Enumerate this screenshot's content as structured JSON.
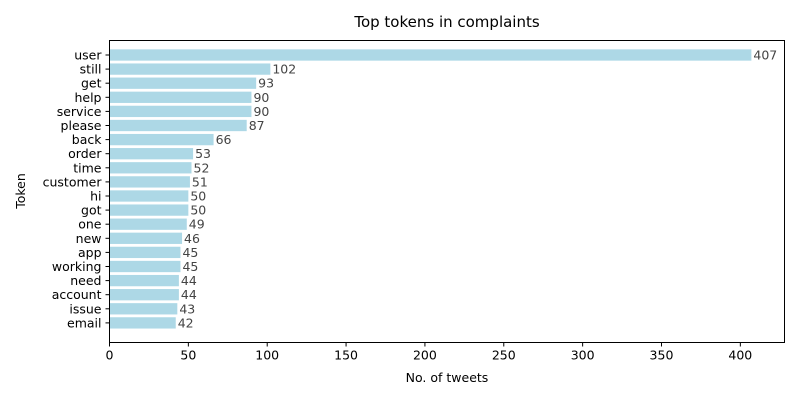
{
  "chart_data": {
    "type": "bar",
    "orientation": "horizontal",
    "title": "Top tokens in complaints",
    "xlabel": "No. of tweets",
    "ylabel": "Token",
    "xlim": [
      0,
      428
    ],
    "xticks": [
      0,
      50,
      100,
      150,
      200,
      250,
      300,
      350,
      400
    ],
    "bar_color": "#add8e6",
    "grid": false,
    "legend": "none",
    "categories": [
      "user",
      "still",
      "get",
      "help",
      "service",
      "please",
      "back",
      "order",
      "time",
      "customer",
      "hi",
      "got",
      "one",
      "new",
      "app",
      "working",
      "need",
      "account",
      "issue",
      "email"
    ],
    "values": [
      407,
      102,
      93,
      90,
      90,
      87,
      66,
      53,
      52,
      51,
      50,
      50,
      49,
      46,
      45,
      45,
      44,
      44,
      43,
      42
    ]
  }
}
